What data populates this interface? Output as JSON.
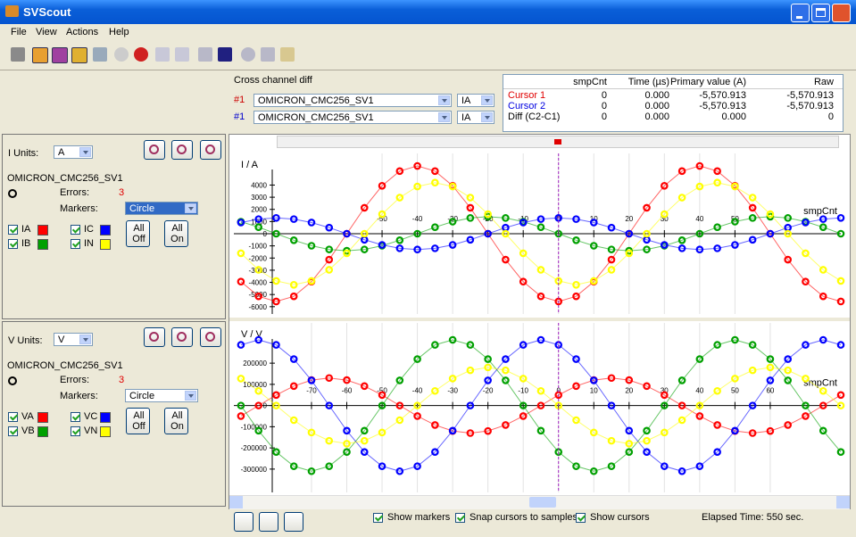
{
  "window": {
    "title": "SVScout"
  },
  "menu": [
    "File",
    "View",
    "Actions",
    "Help"
  ],
  "cross_channel": {
    "label": "Cross channel diff",
    "rows": [
      {
        "index": "#1",
        "stream": "OMICRON_CMC256_SV1",
        "channel": "IA"
      },
      {
        "index": "#1",
        "stream": "OMICRON_CMC256_SV1",
        "channel": "IA"
      }
    ]
  },
  "cursor_table": {
    "header": [
      "smpCnt",
      "Time (µs)",
      "Primary value (A)",
      "Raw"
    ],
    "rows": [
      {
        "label": "Cursor 1",
        "cells": [
          "0",
          "0.000",
          "-5,570.913",
          "-5,570.913"
        ]
      },
      {
        "label": "Cursor 2",
        "cells": [
          "0",
          "0.000",
          "-5,570.913",
          "-5,570.913"
        ]
      },
      {
        "label": "Diff (C2-C1)",
        "cells": [
          "0",
          "0.000",
          "0.000",
          "0"
        ]
      }
    ]
  },
  "panels": [
    {
      "units_label": "I Units:",
      "units": "A",
      "stream": "OMICRON_CMC256_SV1",
      "errors_label": "Errors:",
      "errors": "3",
      "markers_label": "Markers:",
      "markers": "Circle",
      "buttons": [
        "All Off",
        "All On"
      ]
    },
    {
      "units_label": "V Units:",
      "units": "V",
      "stream": "OMICRON_CMC256_SV1",
      "errors_label": "Errors:",
      "errors": "3",
      "markers_label": "Markers:",
      "markers": "Circle",
      "buttons": [
        "All Off",
        "All On"
      ]
    }
  ],
  "footer": {
    "checkboxes": [
      "Show markers",
      "Snap cursors to samples",
      "Show cursors"
    ],
    "elapsed": "Elapsed Time: 550 sec."
  },
  "chart_data": [
    {
      "type": "line",
      "y_label": "I / A",
      "x_label": "smpCnt",
      "grid": true,
      "markers": "circle",
      "x": [
        -90,
        -85,
        -80,
        -75,
        -70,
        -65,
        -60,
        -55,
        -50,
        -45,
        -40,
        -35,
        -30,
        -25,
        -20,
        -15,
        -10,
        -5,
        0,
        5,
        10,
        15,
        20,
        25,
        30,
        35,
        40,
        45,
        50,
        55,
        60,
        65,
        70,
        75,
        80
      ],
      "xlim": [
        -92,
        80
      ],
      "ylim": [
        -6600,
        6600
      ],
      "xticks": [
        -50,
        -40,
        -30,
        -20,
        -10,
        0,
        10,
        20,
        30,
        40,
        50
      ],
      "yticks": [
        4000,
        3000,
        2000,
        1000,
        0,
        -1000,
        -2000,
        -3000,
        -4000,
        -5000,
        -6000
      ],
      "series": [
        {
          "name": "IA",
          "color": "#ff0000",
          "values": [
            -3939,
            -5147,
            -5571,
            -5147,
            -3939,
            -2132,
            0,
            2132,
            3939,
            5147,
            5571,
            5147,
            3939,
            2132,
            0,
            -2132,
            -3939,
            -5147,
            -5571,
            -5147,
            -3939,
            -2132,
            0,
            2132,
            3939,
            5147,
            5571,
            5147,
            3939,
            2132,
            0,
            -2132,
            -3939,
            -5147,
            -5571
          ]
        },
        {
          "name": "IB",
          "color": "#00a000",
          "values": [
            990,
            536,
            0,
            -536,
            -990,
            -1294,
            -1400,
            -1294,
            -990,
            -536,
            0,
            536,
            990,
            1294,
            1400,
            1294,
            990,
            536,
            0,
            -536,
            -990,
            -1294,
            -1400,
            -1294,
            -990,
            -536,
            0,
            536,
            990,
            1294,
            1400,
            1294,
            990,
            536,
            0
          ]
        },
        {
          "name": "IC",
          "color": "#0000ff",
          "values": [
            919,
            1201,
            1300,
            1201,
            919,
            498,
            0,
            -498,
            -919,
            -1201,
            -1300,
            -1201,
            -919,
            -498,
            0,
            498,
            919,
            1201,
            1300,
            1201,
            919,
            498,
            0,
            -498,
            -919,
            -1201,
            -1300,
            -1201,
            -919,
            -498,
            0,
            498,
            919,
            1201,
            1300
          ]
        },
        {
          "name": "IN",
          "color": "#ffff00",
          "values": [
            -1608,
            -2969,
            -3881,
            -4200,
            -3881,
            -2969,
            -1608,
            0,
            1608,
            2969,
            3881,
            4200,
            3881,
            2969,
            1608,
            0,
            -1608,
            -2969,
            -3881,
            -4200,
            -3881,
            -2969,
            -1608,
            0,
            1608,
            2969,
            3881,
            4200,
            3881,
            2969,
            1608,
            0,
            -1608,
            -2969,
            -3881
          ]
        }
      ]
    },
    {
      "type": "line",
      "y_label": "V / V",
      "x_label": "smpCnt",
      "grid": true,
      "markers": "circle",
      "x": [
        -90,
        -85,
        -80,
        -75,
        -70,
        -65,
        -60,
        -55,
        -50,
        -45,
        -40,
        -35,
        -30,
        -25,
        -20,
        -15,
        -10,
        -5,
        0,
        5,
        10,
        15,
        20,
        25,
        30,
        35,
        40,
        45,
        50,
        55,
        60,
        65,
        70,
        75,
        80
      ],
      "xlim": [
        -92,
        80
      ],
      "ylim": [
        -410000,
        390000
      ],
      "xticks": [
        -70,
        -60,
        -50,
        -40,
        -30,
        -20,
        -10,
        0,
        10,
        20,
        30,
        40,
        50,
        60
      ],
      "yticks": [
        200000,
        100000,
        0,
        -100000,
        -200000,
        -300000
      ],
      "series": [
        {
          "name": "VA",
          "color": "#ff0000",
          "values": [
            -49800,
            0,
            49800,
            91900,
            120100,
            130000,
            120100,
            91900,
            49800,
            0,
            -49800,
            -91900,
            -120100,
            -130000,
            -120100,
            -91900,
            -49800,
            0,
            49800,
            91900,
            120100,
            130000,
            120100,
            91900,
            49800,
            0,
            -49800,
            -91900,
            -120100,
            -130000,
            -120100,
            -91900,
            -49800,
            0,
            49800
          ]
        },
        {
          "name": "VB",
          "color": "#00a000",
          "values": [
            0,
            -118700,
            -219200,
            -286400,
            -310000,
            -286400,
            -219200,
            -118700,
            0,
            118700,
            219200,
            286400,
            310000,
            286400,
            219200,
            118700,
            0,
            -118700,
            -219200,
            -286400,
            -310000,
            -286400,
            -219200,
            -118700,
            0,
            118700,
            219200,
            286400,
            310000,
            286400,
            219200,
            118700,
            0,
            -118700,
            -219200
          ]
        },
        {
          "name": "VC",
          "color": "#0000ff",
          "values": [
            286400,
            310000,
            286400,
            219200,
            118700,
            0,
            -118700,
            -219200,
            -286400,
            -310000,
            -286400,
            -219200,
            -118700,
            0,
            118700,
            219200,
            286400,
            310000,
            286400,
            219200,
            118700,
            0,
            -118700,
            -219200,
            -286400,
            -310000,
            -286400,
            -219200,
            -118700,
            0,
            118700,
            219200,
            286400,
            310000,
            286400
          ]
        },
        {
          "name": "VN",
          "color": "#ffff00",
          "values": [
            127300,
            68900,
            0,
            -68900,
            -127300,
            -166300,
            -180000,
            -166300,
            -127300,
            -68900,
            0,
            68900,
            127300,
            166300,
            180000,
            166300,
            127300,
            68900,
            0,
            -68900,
            -127300,
            -166300,
            -180000,
            -166300,
            -127300,
            -68900,
            0,
            68900,
            127300,
            166300,
            180000,
            166300,
            127300,
            68900,
            0
          ]
        }
      ]
    }
  ]
}
